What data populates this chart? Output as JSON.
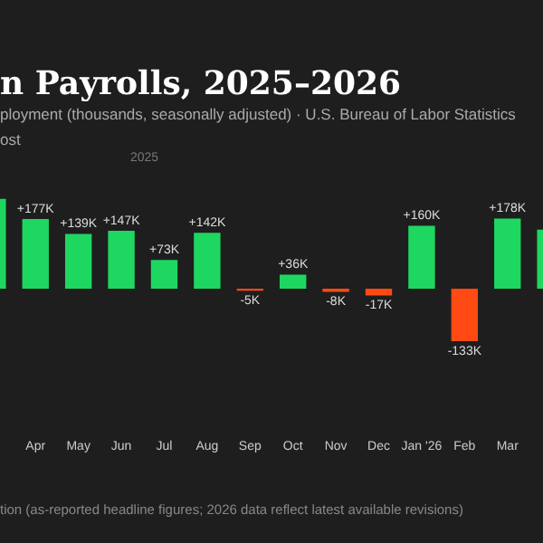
{
  "chart_data": {
    "type": "bar",
    "title": "n Payrolls, 2025–2026",
    "subtitle": "ployment (thousands, seasonally adjusted) · U.S. Bureau of Labor Statistics",
    "annotations": [
      "ost",
      "2025",
      "tion (as-reported headline figures; 2026 data reflect latest available revisions)"
    ],
    "categories": [
      null,
      "Apr",
      "May",
      "Jun",
      "Jul",
      "Aug",
      "Sep",
      "Oct",
      "Nov",
      "Dec",
      "Jan '26",
      "Feb",
      "Mar",
      null
    ],
    "values": [
      228,
      177,
      139,
      147,
      73,
      142,
      -5,
      36,
      -8,
      -17,
      160,
      -133,
      178,
      150
    ],
    "colors": [
      "#1ed760",
      "#1ed760",
      "#1ed760",
      "#1ed760",
      "#1ed760",
      "#1ed760",
      "#ff4a14",
      "#1ed760",
      "#ff4a14",
      "#ff4a14",
      "#1ed760",
      "#ff4a14",
      "#1ed760",
      "#1ed760"
    ],
    "value_labels": [
      null,
      "+177K",
      "+139K",
      "+147K",
      "+73K",
      "+142K",
      "-5K",
      "+36K",
      "-8K",
      "-17K",
      "+160K",
      "-133K",
      "+178K",
      null
    ],
    "legend": false
  }
}
